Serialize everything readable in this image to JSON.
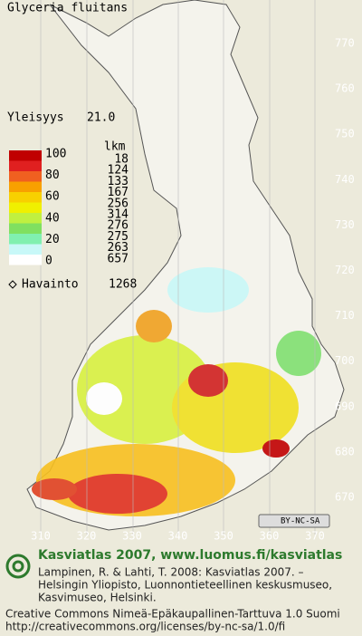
{
  "title": "Glyceria fluitans",
  "frequency": {
    "label": "Yleisyys",
    "value": "21.0"
  },
  "legend": {
    "scale": [
      100,
      80,
      60,
      40,
      20,
      0
    ],
    "count_header": "lkm",
    "counts": [
      18,
      124,
      133,
      167,
      256,
      314,
      276,
      275,
      263,
      657
    ]
  },
  "observations": {
    "label": "Havainto",
    "value": 1268
  },
  "grid": {
    "north": [
      770,
      760,
      750,
      740,
      730,
      720,
      710,
      700,
      690,
      680,
      670
    ],
    "east": [
      310,
      320,
      330,
      340,
      350,
      360,
      370
    ]
  },
  "badge": "BY-NC-SA",
  "footer": {
    "brand": "Kasviatlas 2007, www.luomus.fi/kasviatlas",
    "citation": [
      "Lampinen, R. & Lahti, T. 2008: Kasviatlas 2007. –",
      "Helsingin Yliopisto, Luonnontieteellinen keskusmuseo,",
      "Kasvimuseo, Helsinki."
    ],
    "license": [
      "Creative Commons Nimeä-Epäkaupallinen-Tarttuva 1.0 Suomi",
      "http://creativecommons.org/licenses/by-nc-sa/1.0/fi"
    ]
  }
}
